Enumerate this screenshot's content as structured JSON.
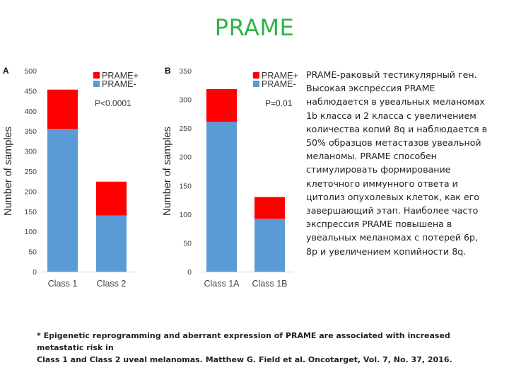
{
  "page": {
    "title": "PRAME"
  },
  "chart_data": [
    {
      "panel_label": "A",
      "type": "bar",
      "stacked": true,
      "categories": [
        "Class 1",
        "Class 2"
      ],
      "series": [
        {
          "name": "PRAME-",
          "color": "#5b9bd5",
          "values": [
            355,
            140
          ]
        },
        {
          "name": "PRAME+",
          "color": "#ff0000",
          "values": [
            98,
            84
          ]
        }
      ],
      "ylabel": "Number of samples",
      "ylim": [
        0,
        500
      ],
      "yticks": [
        0,
        50,
        100,
        150,
        200,
        250,
        300,
        350,
        400,
        450,
        500
      ],
      "annotation": "P<0.0001",
      "legend_position": "top-right",
      "grid": false
    },
    {
      "panel_label": "B",
      "type": "bar",
      "stacked": true,
      "categories": [
        "Class 1A",
        "Class 1B"
      ],
      "series": [
        {
          "name": "PRAME-",
          "color": "#5b9bd5",
          "values": [
            261,
            92
          ]
        },
        {
          "name": "PRAME+",
          "color": "#ff0000",
          "values": [
            57,
            38
          ]
        }
      ],
      "ylabel": "Number of samples",
      "ylim": [
        0,
        350
      ],
      "yticks": [
        0,
        50,
        100,
        150,
        200,
        250,
        300,
        350
      ],
      "annotation": "P=0.01",
      "legend_position": "top-right",
      "grid": false
    }
  ],
  "description": [
    "PRAME-раковый тестикулярный ген.",
    "Высокая экспрессия PRAME",
    "наблюдается в увеальных меланомах",
    "1b класса и 2 класса с увеличением",
    "количества копий 8q и наблюдается в",
    "50% образцов метастазов увеальной",
    "меланомы. PRAME способен",
    "стимулировать формирование",
    "клеточного иммунного ответа и",
    "цитолиз опухолевых клеток, как его",
    "завершающий этап.  Наиболее часто",
    "экспрессия PRAME повышена в",
    "увеальных меланомах с потерей 6р,",
    "8р и увеличением копийности 8q."
  ],
  "footnote": [
    "* Epigenetic reprogramming and aberrant expression of PRAME are associated with increased metastatic risk in",
    "Class 1 and Class 2 uveal melanomas. Matthew G. Field et al. Oncotarget, Vol. 7, No. 37, 2016."
  ]
}
